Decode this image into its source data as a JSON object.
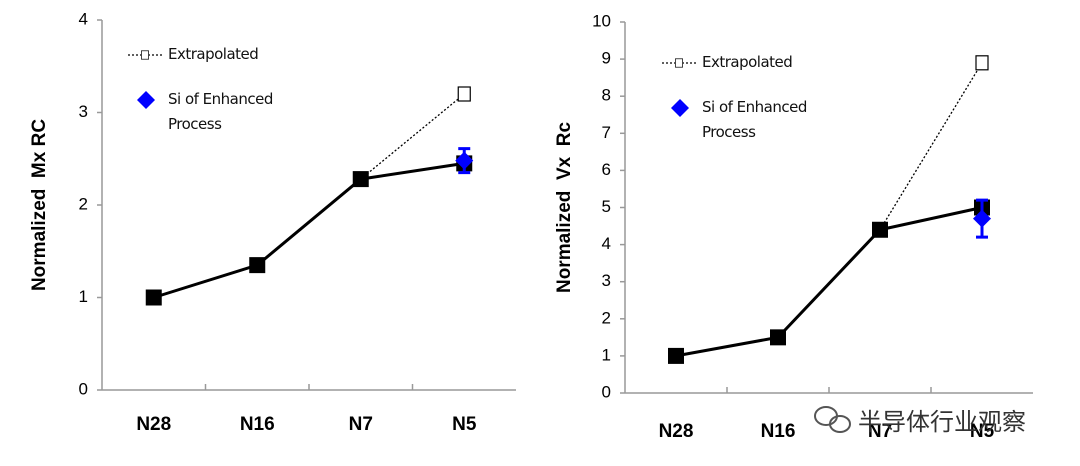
{
  "chart_data": [
    {
      "type": "line",
      "ylabel": "Normalized  Mx RC",
      "categories": [
        "N28",
        "N16",
        "N7",
        "N5"
      ],
      "ylim": [
        0,
        4
      ],
      "yticks": [
        0,
        1,
        2,
        3,
        4
      ],
      "legend": "upper left",
      "series": [
        {
          "color": "#000000",
          "marker": "square",
          "line_style": "solid",
          "values": [
            1.0,
            1.35,
            2.28,
            2.45
          ]
        },
        {
          "name": "Extrapolated",
          "color": "#000000",
          "marker": "hollow-square",
          "line_style": "dotted",
          "values": [
            null,
            null,
            2.28,
            3.2
          ]
        },
        {
          "name": "Si of Enhanced Process",
          "color": "#0000ff",
          "marker": "diamond",
          "line_style": "none",
          "values": [
            null,
            null,
            null,
            2.48
          ],
          "errors": [
            null,
            null,
            null,
            0.13
          ]
        }
      ]
    },
    {
      "type": "line",
      "ylabel": "Normalized  Vx  Rc",
      "categories": [
        "N28",
        "N16",
        "N7",
        "N5"
      ],
      "ylim": [
        0,
        10
      ],
      "yticks": [
        0,
        1,
        2,
        3,
        4,
        5,
        6,
        7,
        8,
        9,
        10
      ],
      "legend": "upper left",
      "series": [
        {
          "color": "#000000",
          "marker": "square",
          "line_style": "solid",
          "values": [
            1.0,
            1.5,
            4.4,
            5.0
          ]
        },
        {
          "name": "Extrapolated",
          "color": "#000000",
          "marker": "hollow-square",
          "line_style": "dotted",
          "values": [
            null,
            null,
            4.4,
            8.9
          ]
        },
        {
          "name": "Si of Enhanced Process",
          "color": "#0000ff",
          "marker": "diamond",
          "line_style": "none",
          "values": [
            null,
            null,
            null,
            4.7
          ],
          "errors": [
            null,
            null,
            null,
            0.5
          ]
        }
      ]
    }
  ],
  "watermark": "半导体行业观察"
}
